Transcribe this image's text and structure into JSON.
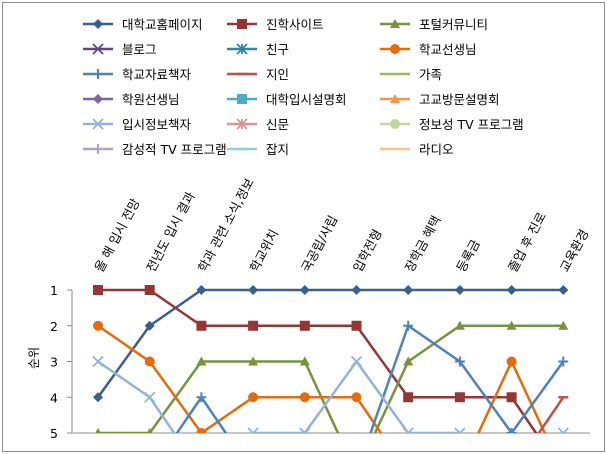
{
  "chart_data": {
    "type": "line",
    "ylabel": "순위",
    "xlabel": "",
    "title": "",
    "ylim": [
      1,
      5
    ],
    "y_ticks": [
      "1",
      "2",
      "3",
      "4",
      "5"
    ],
    "y_reversed": true,
    "categories": [
      "올 해 입시 전망",
      "전년도 입시 결과",
      "학과 관련 소식,정보",
      "학교위치",
      "국공립/사립",
      "입학전형",
      "장학금 혜택",
      "등록금",
      "졸업 후 진로",
      "교육환경"
    ],
    "legend_position": "top",
    "series": [
      {
        "name": "대학교홈페이지",
        "color": "#3a5f8f",
        "marker": "diamond",
        "values": [
          4,
          2,
          1,
          1,
          1,
          1,
          1,
          1,
          1,
          1
        ]
      },
      {
        "name": "진학사이트",
        "color": "#943634",
        "marker": "square",
        "values": [
          1,
          1,
          2,
          2,
          2,
          2,
          4,
          4,
          4,
          null
        ]
      },
      {
        "name": "포털커뮤니티",
        "color": "#77933c",
        "marker": "triangle",
        "values": [
          5,
          5,
          3,
          3,
          3,
          null,
          3,
          2,
          2,
          2
        ]
      },
      {
        "name": "블로그",
        "color": "#60497a",
        "marker": "x",
        "values": [
          null,
          null,
          null,
          null,
          null,
          null,
          null,
          null,
          null,
          null
        ]
      },
      {
        "name": "친구",
        "color": "#31859c",
        "marker": "star",
        "values": [
          null,
          null,
          null,
          null,
          null,
          null,
          null,
          null,
          null,
          null
        ]
      },
      {
        "name": "학교선생님",
        "color": "#e46c0a",
        "marker": "circle",
        "values": [
          2,
          3,
          5,
          4,
          4,
          4,
          null,
          null,
          3,
          null
        ]
      },
      {
        "name": "학교자료책자",
        "color": "#4f81bd",
        "marker": "plus",
        "values": [
          null,
          null,
          4,
          null,
          null,
          null,
          2,
          3,
          5,
          3
        ]
      },
      {
        "name": "지인",
        "color": "#c0504d",
        "marker": "dash",
        "values": [
          null,
          null,
          null,
          null,
          null,
          null,
          null,
          null,
          null,
          4
        ]
      },
      {
        "name": "가족",
        "color": "#9bbb59",
        "marker": "none",
        "values": [
          null,
          null,
          null,
          null,
          null,
          null,
          null,
          null,
          null,
          null
        ]
      },
      {
        "name": "학원선생님",
        "color": "#8064a2",
        "marker": "diamond",
        "values": [
          null,
          null,
          null,
          null,
          null,
          null,
          null,
          null,
          null,
          null
        ]
      },
      {
        "name": "대학입시설명회",
        "color": "#4bacc6",
        "marker": "square",
        "values": [
          null,
          null,
          null,
          null,
          null,
          null,
          null,
          null,
          null,
          null
        ]
      },
      {
        "name": "고교방문설명회",
        "color": "#f79646",
        "marker": "triangle",
        "values": [
          null,
          null,
          null,
          null,
          null,
          null,
          null,
          null,
          null,
          null
        ]
      },
      {
        "name": "입시정보책자",
        "color": "#95b3d7",
        "marker": "x",
        "values": [
          3,
          4,
          null,
          5,
          5,
          3,
          5,
          5,
          null,
          5
        ]
      },
      {
        "name": "신문",
        "color": "#d99694",
        "marker": "star",
        "values": [
          null,
          null,
          null,
          null,
          null,
          null,
          null,
          null,
          null,
          null
        ]
      },
      {
        "name": "정보성 TV 프로그램",
        "color": "#c3d69b",
        "marker": "circle",
        "values": [
          null,
          null,
          null,
          null,
          null,
          null,
          null,
          null,
          null,
          null
        ]
      },
      {
        "name": "감성적 TV 프로그램",
        "color": "#b3a2c7",
        "marker": "plus",
        "values": [
          null,
          null,
          null,
          null,
          null,
          null,
          null,
          null,
          null,
          null
        ]
      },
      {
        "name": "잡지",
        "color": "#93cddd",
        "marker": "dash",
        "values": [
          null,
          null,
          null,
          null,
          null,
          null,
          null,
          null,
          null,
          null
        ]
      },
      {
        "name": "라디오",
        "color": "#fac090",
        "marker": "none",
        "values": [
          null,
          null,
          null,
          null,
          null,
          null,
          null,
          null,
          null,
          null
        ]
      }
    ]
  }
}
